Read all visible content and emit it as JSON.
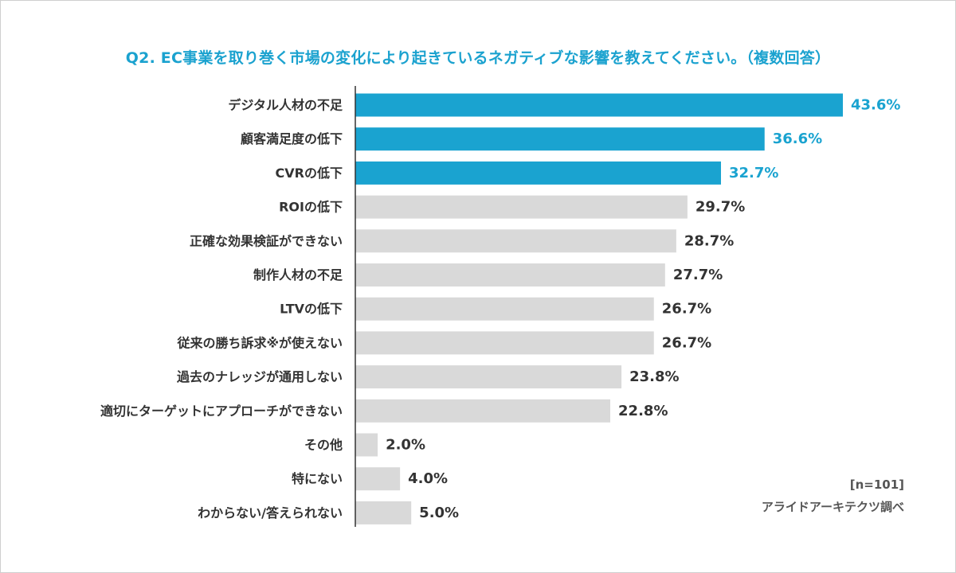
{
  "chart_data": {
    "type": "bar",
    "orientation": "horizontal",
    "title": "Q2. EC事業を取り巻く市場の変化により起きているネガティブな影響を教えてください。（複数回答）",
    "categories": [
      "デジタル人材の不足",
      "顧客満足度の低下",
      "CVRの低下",
      "ROIの低下",
      "正確な効果検証ができない",
      "制作人材の不足",
      "LTVの低下",
      "従来の勝ち訴求※が使えない",
      "過去のナレッジが通用しない",
      "適切にターゲットにアプローチができない",
      "その他",
      "特にない",
      "わからない/答えられない"
    ],
    "values": [
      43.6,
      36.6,
      32.7,
      29.7,
      28.7,
      27.7,
      26.7,
      26.7,
      23.8,
      22.8,
      2.0,
      4.0,
      5.0
    ],
    "value_labels": [
      "43.6%",
      "36.6%",
      "32.7%",
      "29.7%",
      "28.7%",
      "27.7%",
      "26.7%",
      "26.7%",
      "23.8%",
      "22.8%",
      "2.0%",
      "4.0%",
      "5.0%"
    ],
    "highlight_count": 3,
    "xlim": [
      0,
      46
    ],
    "colors": {
      "highlight": "#1aa3d0",
      "normal": "#d9d9d9",
      "highlight_text": "#1aa3d0",
      "normal_text": "#333333",
      "axis": "#333333"
    },
    "sample_note": "[n=101]",
    "source_note": "アライドアーキテクツ調べ"
  }
}
